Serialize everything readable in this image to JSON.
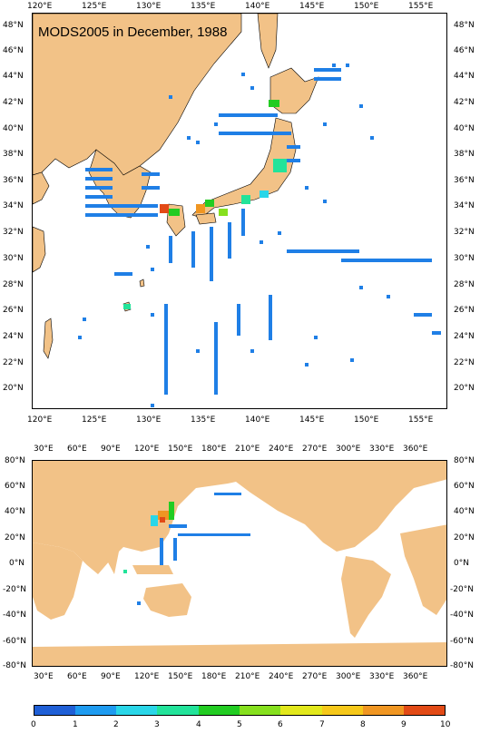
{
  "top_map": {
    "title": "MODS2005 in December, 1988",
    "lon_labels": [
      "120°E",
      "125°E",
      "130°E",
      "135°E",
      "140°E",
      "145°E",
      "150°E",
      "155°E"
    ],
    "lat_labels": [
      "48°N",
      "46°N",
      "44°N",
      "42°N",
      "40°N",
      "38°N",
      "36°N",
      "34°N",
      "32°N",
      "30°N",
      "28°N",
      "26°N",
      "24°N",
      "22°N",
      "20°N"
    ],
    "land_color": "#f2c287",
    "ocean_color": "#ffffff"
  },
  "bottom_map": {
    "lon_labels": [
      "30°E",
      "60°E",
      "90°E",
      "120°E",
      "150°E",
      "180°E",
      "210°E",
      "240°E",
      "270°E",
      "300°E",
      "330°E",
      "360°E"
    ],
    "lat_labels": [
      "80°N",
      "60°N",
      "40°N",
      "20°N",
      "0°N",
      "-20°N",
      "-40°N",
      "-60°N",
      "-80°N"
    ],
    "land_color": "#f2c287"
  },
  "colorbar": {
    "labels": [
      "0",
      "1",
      "2",
      "3",
      "4",
      "5",
      "6",
      "7",
      "8",
      "9",
      "10"
    ],
    "colors": [
      "#1f5fd6",
      "#1e9bf0",
      "#2ad6e8",
      "#22e39a",
      "#22cc22",
      "#86e01e",
      "#e2e81c",
      "#f6c81a",
      "#f09622",
      "#e24a16"
    ]
  }
}
